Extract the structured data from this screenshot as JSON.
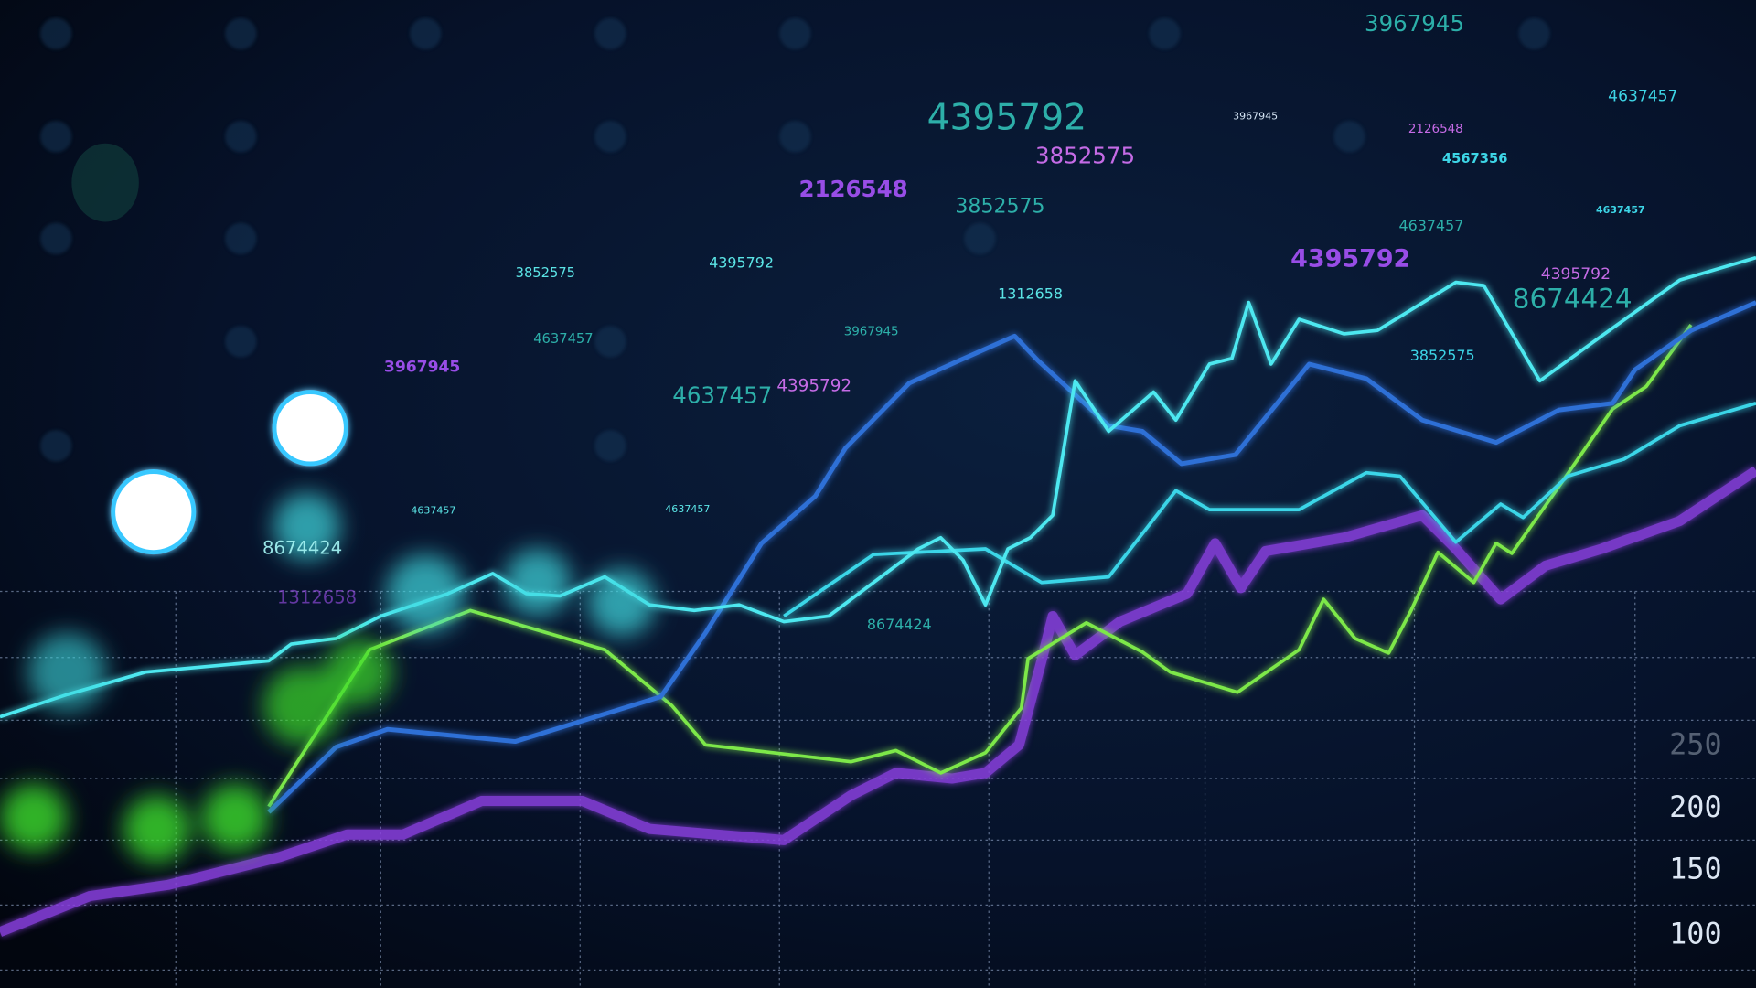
{
  "floating_numbers": [
    "3967945",
    "4395792",
    "3852575",
    "2126548",
    "3852575",
    "3967945",
    "2126548",
    "4567356",
    "4637457",
    "4637457",
    "4637457",
    "4395792",
    "4395792",
    "8674424",
    "3852575",
    "3852575",
    "4395792",
    "1312658",
    "3967945",
    "4637457",
    "3967945",
    "4637457",
    "4395792",
    "4637457",
    "4637457",
    "8674424",
    "1312658",
    "8674424"
  ],
  "axis_labels": [
    "100",
    "150",
    "200",
    "250"
  ]
}
